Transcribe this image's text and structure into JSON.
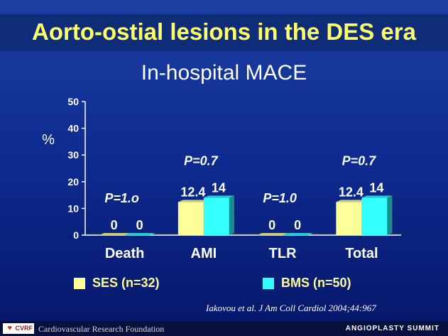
{
  "header": {
    "title": "Aorto-ostial lesions in the DES era"
  },
  "chart_data": {
    "type": "bar",
    "title": "In-hospital MACE",
    "ylabel": "%",
    "ylim": [
      0,
      50
    ],
    "yticks": [
      0,
      10,
      20,
      30,
      40,
      50
    ],
    "categories": [
      "Death",
      "AMI",
      "TLR",
      "Total"
    ],
    "series": [
      {
        "name": "SES (n=32)",
        "values": [
          0,
          12.4,
          0,
          12.4
        ],
        "labels": [
          "0",
          "12.4",
          "0",
          "12.4"
        ],
        "color": "#ffff99"
      },
      {
        "name": "BMS (n=50)",
        "values": [
          0,
          14,
          0,
          14
        ],
        "labels": [
          "0",
          "14",
          "0",
          "14"
        ],
        "color": "#33ffff"
      }
    ],
    "p_values": [
      "P=1.o",
      "P=0.7",
      "P=1.0",
      "P=0.7"
    ],
    "legend_position": "bottom",
    "grid": false
  },
  "citation": "Iakovou et al. J Am Coll Cardiol 2004;44:967",
  "footer": {
    "logo_text": "CVRF",
    "left": "Cardiovascular Research Foundation",
    "right": "ANGIOPLASTY SUMMIT"
  }
}
